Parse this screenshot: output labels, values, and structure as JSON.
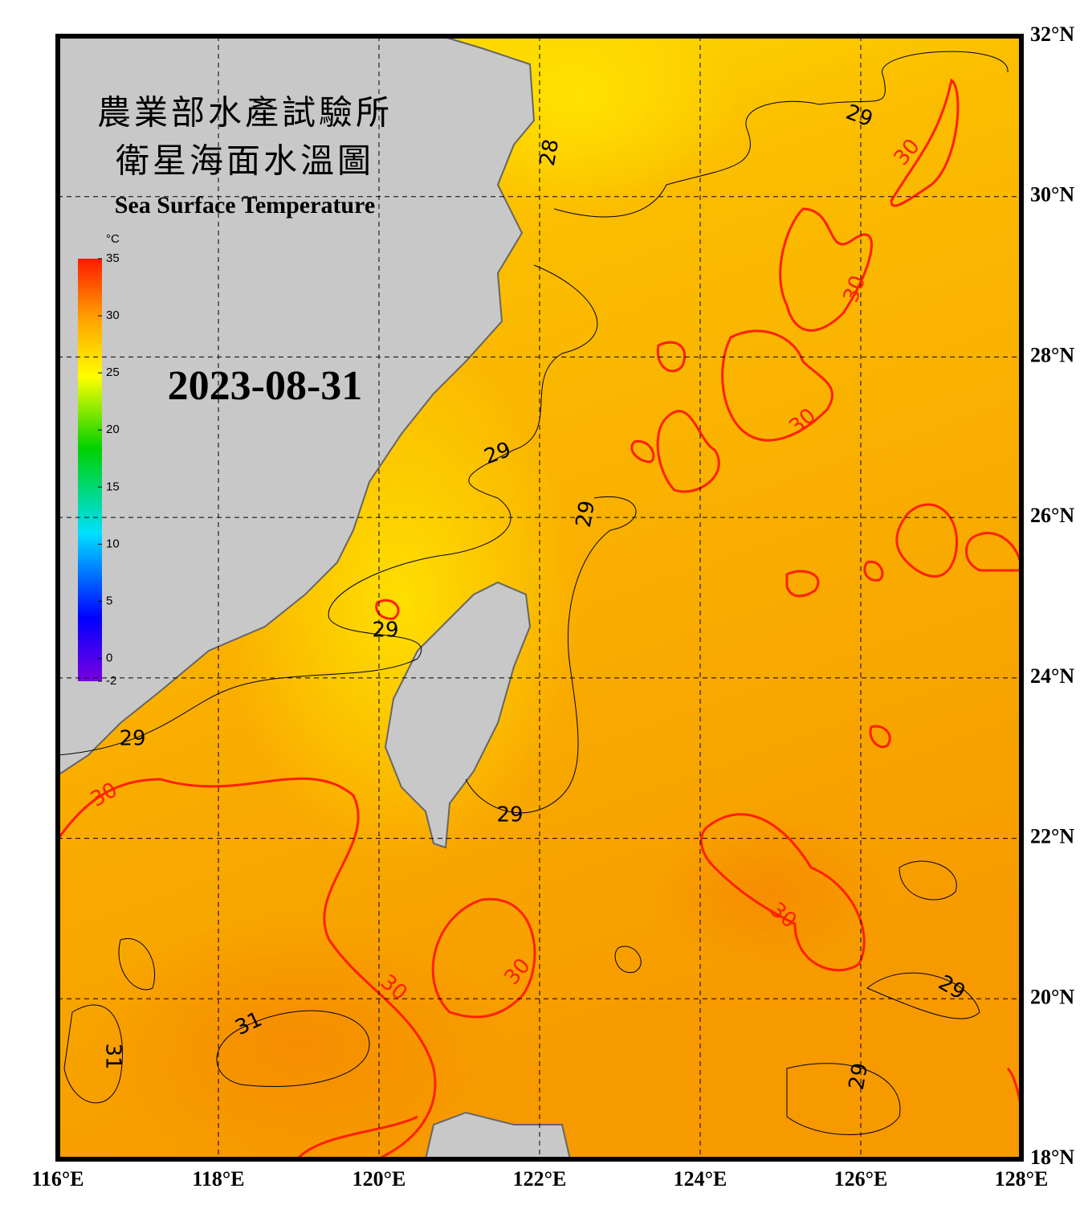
{
  "title": "農業部水產試驗所",
  "subtitle": "衛星海面水溫圖",
  "title_en": "Sea Surface Temperature",
  "date": "2023-08-31",
  "colorbar": {
    "unit": "°C",
    "range": [
      -2,
      35
    ],
    "ticks": [
      35,
      30,
      25,
      20,
      15,
      10,
      5,
      0,
      -2
    ]
  },
  "lon_range": [
    116,
    128
  ],
  "lat_range": [
    18,
    32
  ],
  "lon_ticks": [
    {
      "value": 116,
      "label": "116°E"
    },
    {
      "value": 118,
      "label": "118°E"
    },
    {
      "value": 120,
      "label": "120°E"
    },
    {
      "value": 122,
      "label": "122°E"
    },
    {
      "value": 124,
      "label": "124°E"
    },
    {
      "value": 126,
      "label": "126°E"
    },
    {
      "value": 128,
      "label": "128°E"
    }
  ],
  "lat_ticks": [
    {
      "value": 32,
      "label": "32°N"
    },
    {
      "value": 30,
      "label": "30°N"
    },
    {
      "value": 28,
      "label": "28°N"
    },
    {
      "value": 26,
      "label": "26°N"
    },
    {
      "value": 24,
      "label": "24°N"
    },
    {
      "value": 22,
      "label": "22°N"
    },
    {
      "value": 20,
      "label": "20°N"
    },
    {
      "value": 18,
      "label": "18°N"
    }
  ],
  "contour_labels": [
    29,
    30,
    28,
    30,
    30,
    29,
    29,
    29,
    29,
    30,
    29,
    30,
    30,
    30,
    29,
    31,
    31,
    29
  ]
}
